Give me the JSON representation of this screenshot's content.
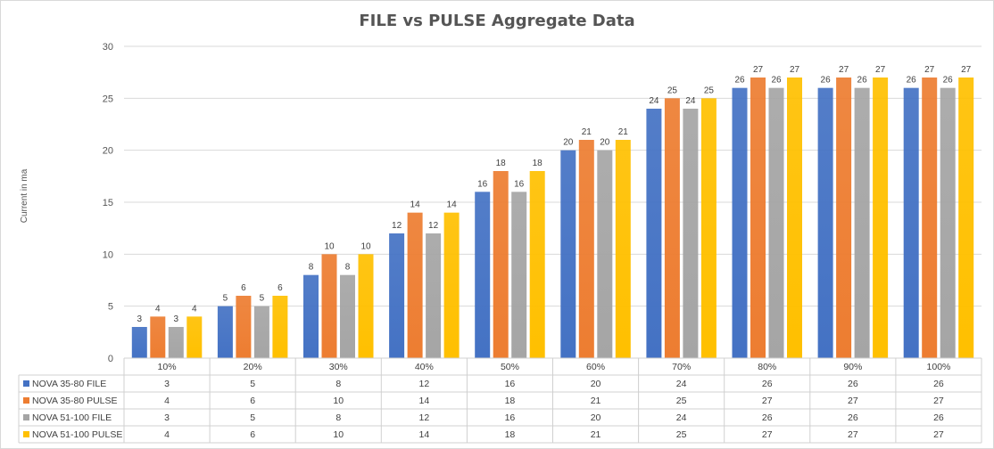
{
  "chart_data": {
    "type": "bar",
    "title": "FILE vs PULSE Aggregate Data",
    "xlabel": "",
    "ylabel": "Current in ma",
    "ylim": [
      0,
      30
    ],
    "yticks": [
      0,
      5,
      10,
      15,
      20,
      25,
      30
    ],
    "grid": true,
    "legend": "data-table-below",
    "categories": [
      "10%",
      "20%",
      "30%",
      "40%",
      "50%",
      "60%",
      "70%",
      "80%",
      "90%",
      "100%"
    ],
    "series": [
      {
        "name": "NOVA 35-80 FILE",
        "color": "#4472C4",
        "values": [
          3,
          5,
          8,
          12,
          16,
          20,
          24,
          26,
          26,
          26
        ]
      },
      {
        "name": "NOVA 35-80 PULSE",
        "color": "#ED7D31",
        "values": [
          4,
          6,
          10,
          14,
          18,
          21,
          25,
          27,
          27,
          27
        ]
      },
      {
        "name": "NOVA 51-100 FILE",
        "color": "#A5A5A5",
        "values": [
          3,
          5,
          8,
          12,
          16,
          20,
          24,
          26,
          26,
          26
        ]
      },
      {
        "name": "NOVA 51-100 PULSE",
        "color": "#FFC000",
        "values": [
          4,
          6,
          10,
          14,
          18,
          21,
          25,
          27,
          27,
          27
        ]
      }
    ]
  }
}
